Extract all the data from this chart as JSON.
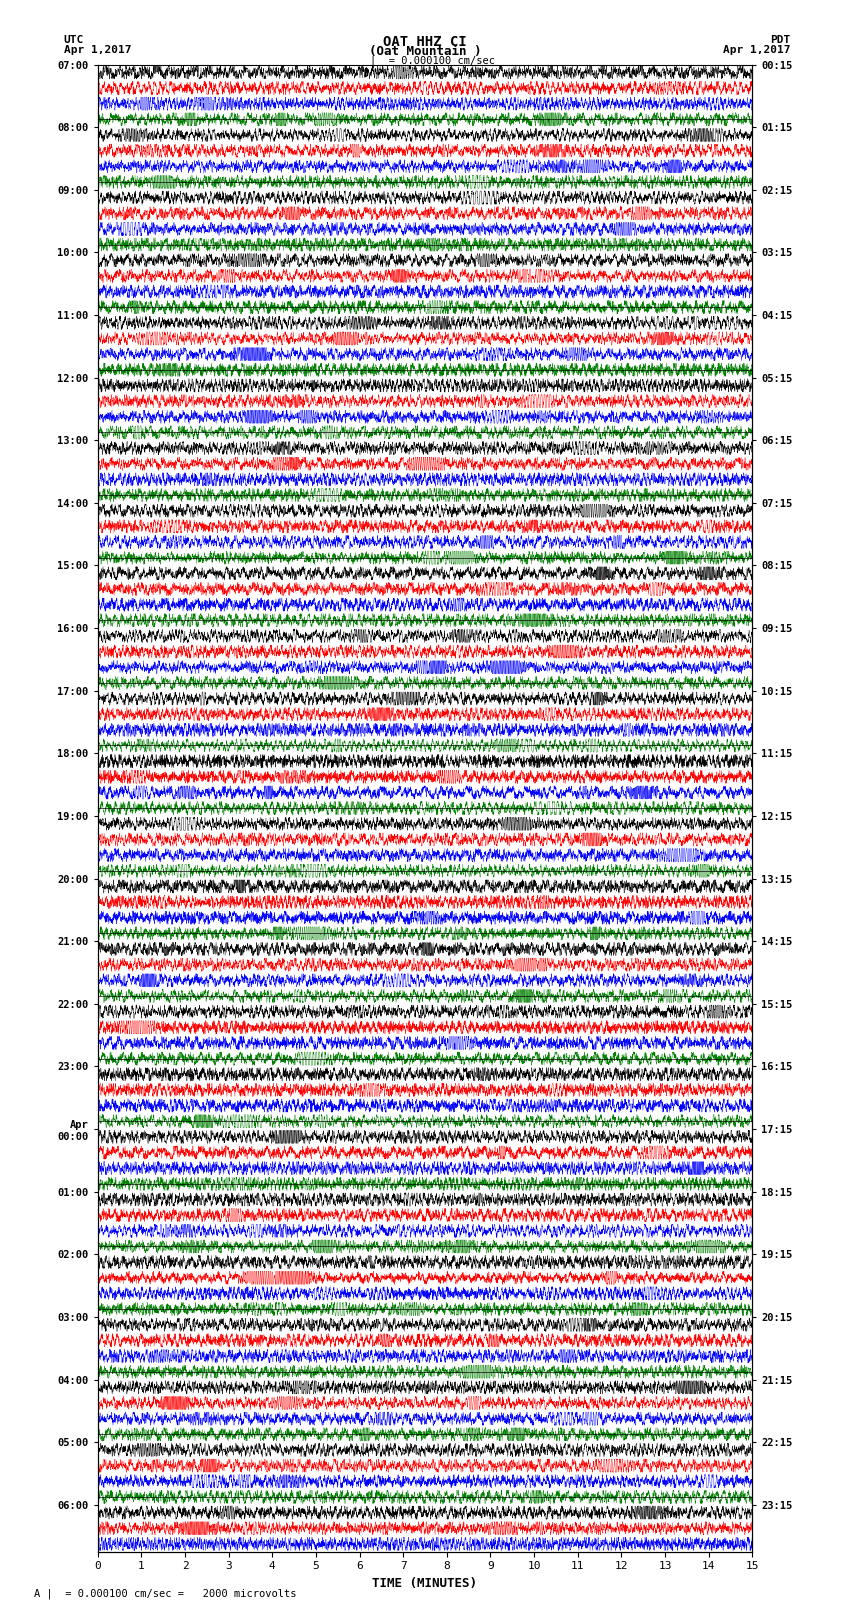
{
  "title_line1": "OAT HHZ CI",
  "title_line2": "(Oat Mountain )",
  "scale_label": "= 0.000100 cm/sec",
  "footer_label": "= 0.000100 cm/sec =   2000 microvolts",
  "utc_label": "UTC",
  "pdt_label": "PDT",
  "date_left": "Apr 1,2017",
  "date_right": "Apr 1,2017",
  "xlabel": "TIME (MINUTES)",
  "xlabel_ticks": [
    0,
    1,
    2,
    3,
    4,
    5,
    6,
    7,
    8,
    9,
    10,
    11,
    12,
    13,
    14,
    15
  ],
  "colors": [
    "black",
    "red",
    "blue",
    "green"
  ],
  "left_times": [
    "07:00",
    "",
    "",
    "",
    "08:00",
    "",
    "",
    "",
    "09:00",
    "",
    "",
    "",
    "10:00",
    "",
    "",
    "",
    "11:00",
    "",
    "",
    "",
    "12:00",
    "",
    "",
    "",
    "13:00",
    "",
    "",
    "",
    "14:00",
    "",
    "",
    "",
    "15:00",
    "",
    "",
    "",
    "16:00",
    "",
    "",
    "",
    "17:00",
    "",
    "",
    "",
    "18:00",
    "",
    "",
    "",
    "19:00",
    "",
    "",
    "",
    "20:00",
    "",
    "",
    "",
    "21:00",
    "",
    "",
    "",
    "22:00",
    "",
    "",
    "",
    "23:00",
    "",
    "",
    "",
    "Apr\n00:00",
    "",
    "",
    "",
    "01:00",
    "",
    "",
    "",
    "02:00",
    "",
    "",
    "",
    "03:00",
    "",
    "",
    "",
    "04:00",
    "",
    "",
    "",
    "05:00",
    "",
    "",
    "",
    "06:00",
    "",
    ""
  ],
  "right_times": [
    "00:15",
    "",
    "",
    "",
    "01:15",
    "",
    "",
    "",
    "02:15",
    "",
    "",
    "",
    "03:15",
    "",
    "",
    "",
    "04:15",
    "",
    "",
    "",
    "05:15",
    "",
    "",
    "",
    "06:15",
    "",
    "",
    "",
    "07:15",
    "",
    "",
    "",
    "08:15",
    "",
    "",
    "",
    "09:15",
    "",
    "",
    "",
    "10:15",
    "",
    "",
    "",
    "11:15",
    "",
    "",
    "",
    "12:15",
    "",
    "",
    "",
    "13:15",
    "",
    "",
    "",
    "14:15",
    "",
    "",
    "",
    "15:15",
    "",
    "",
    "",
    "16:15",
    "",
    "",
    "",
    "17:15",
    "",
    "",
    "",
    "18:15",
    "",
    "",
    "",
    "19:15",
    "",
    "",
    "",
    "20:15",
    "",
    "",
    "",
    "21:15",
    "",
    "",
    "",
    "22:15",
    "",
    "",
    "",
    "23:15",
    "",
    ""
  ],
  "num_rows": 95,
  "minutes": 15,
  "background_color": "white",
  "noise_seed": 42,
  "n_points": 4000,
  "trace_amplitude": 0.42,
  "linewidth": 0.3
}
